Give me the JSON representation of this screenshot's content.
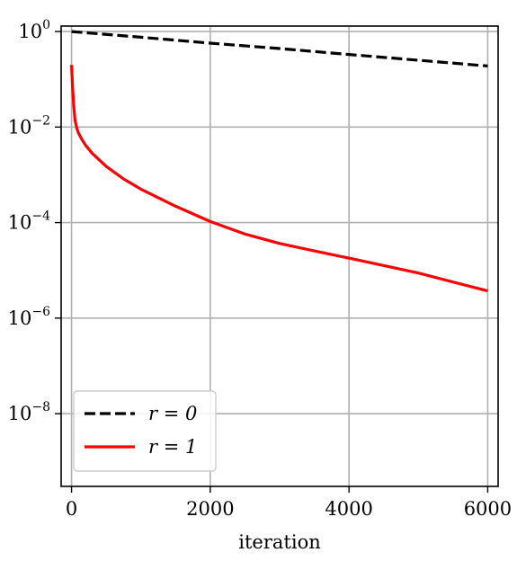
{
  "chart_data": {
    "type": "line",
    "title": "",
    "xlabel": "iteration",
    "ylabel": "",
    "yscale": "log",
    "grid": true,
    "legend_position": "lower-left",
    "xlim": [
      -150,
      6150
    ],
    "ylim": [
      3e-10,
      1.3
    ],
    "x_ticks": [
      0,
      2000,
      4000,
      6000
    ],
    "y_ticks": [
      {
        "value": 1,
        "base": "10",
        "exp": "0"
      },
      {
        "value": 0.01,
        "base": "10",
        "exp": "−2"
      },
      {
        "value": 0.0001,
        "base": "10",
        "exp": "−4"
      },
      {
        "value": 1e-06,
        "base": "10",
        "exp": "−6"
      },
      {
        "value": 1e-08,
        "base": "10",
        "exp": "−8"
      }
    ],
    "series": [
      {
        "name": "r = 0",
        "color": "#000000",
        "style": "dashed",
        "x": [
          0,
          1000,
          2000,
          3000,
          4000,
          5000,
          6000
        ],
        "y": [
          1.0,
          0.76,
          0.57,
          0.44,
          0.33,
          0.25,
          0.19
        ]
      },
      {
        "name": "r = 1",
        "color": "#ff0000",
        "style": "solid",
        "x": [
          0,
          15,
          30,
          50,
          75,
          100,
          150,
          200,
          300,
          500,
          750,
          1000,
          1500,
          2000,
          2500,
          3000,
          3500,
          4000,
          5000,
          6000
        ],
        "y": [
          0.2,
          0.07,
          0.03,
          0.014,
          0.0095,
          0.0075,
          0.0055,
          0.0042,
          0.0028,
          0.0015,
          0.00082,
          0.0005,
          0.00022,
          0.000105,
          5.75e-05,
          3.65e-05,
          2.55e-05,
          1.8e-05,
          8.8e-06,
          3.7e-06
        ]
      }
    ]
  }
}
